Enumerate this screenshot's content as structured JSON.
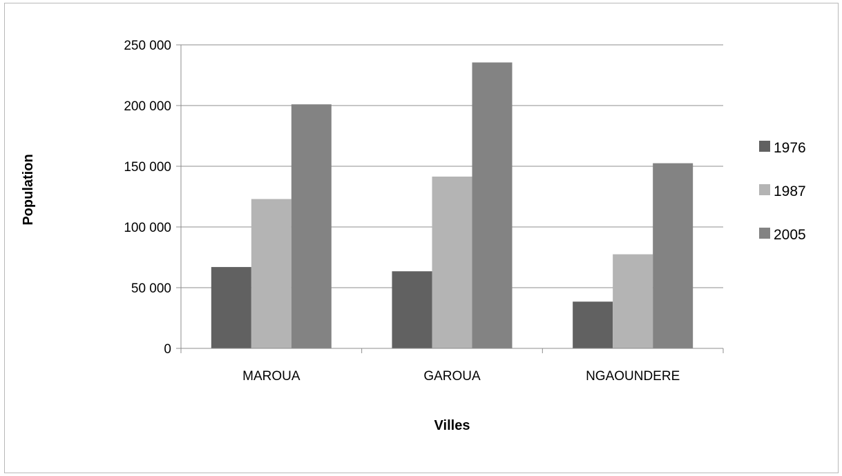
{
  "chart_data": {
    "type": "bar",
    "categories": [
      "MAROUA",
      "GAROUA",
      "NGAOUNDERE"
    ],
    "series": [
      {
        "name": "1976",
        "values": [
          67000,
          63500,
          38500
        ],
        "color": "#616161"
      },
      {
        "name": "1987",
        "values": [
          123000,
          141500,
          77500
        ],
        "color": "#b4b4b4"
      },
      {
        "name": "2005",
        "values": [
          201000,
          235500,
          152500
        ],
        "color": "#838383"
      }
    ],
    "title": "",
    "xlabel": "Villes",
    "ylabel": "Population",
    "ylim": [
      0,
      250000
    ],
    "yticks": [
      0,
      50000,
      100000,
      150000,
      200000,
      250000
    ],
    "ytick_labels": [
      "0",
      "50 000",
      "100 000",
      "150 000",
      "200 000",
      "250 000"
    ],
    "grid": true,
    "legend_position": "right",
    "colors": {
      "gridline": "#8c8c8c",
      "axis": "#8c8c8c",
      "border": "#b8b8b8"
    }
  }
}
